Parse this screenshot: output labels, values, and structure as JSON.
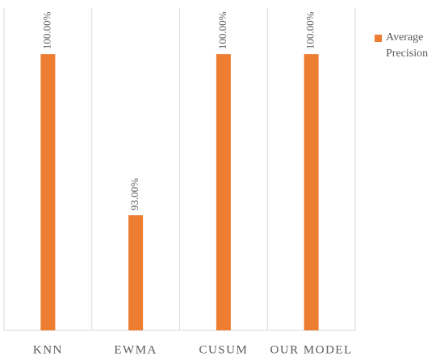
{
  "chart_data": {
    "type": "bar",
    "categories": [
      "KNN",
      "EWMA",
      "CUSUM",
      "OUR MODEL"
    ],
    "series": [
      {
        "name": "Average Precision",
        "color": "#ed7d31",
        "values": [
          100,
          93,
          100,
          100
        ],
        "value_labels": [
          "100.00%",
          "93.00%",
          "100.00%",
          "100.00%"
        ]
      }
    ],
    "ylim": [
      88,
      102
    ],
    "legend": "right"
  }
}
